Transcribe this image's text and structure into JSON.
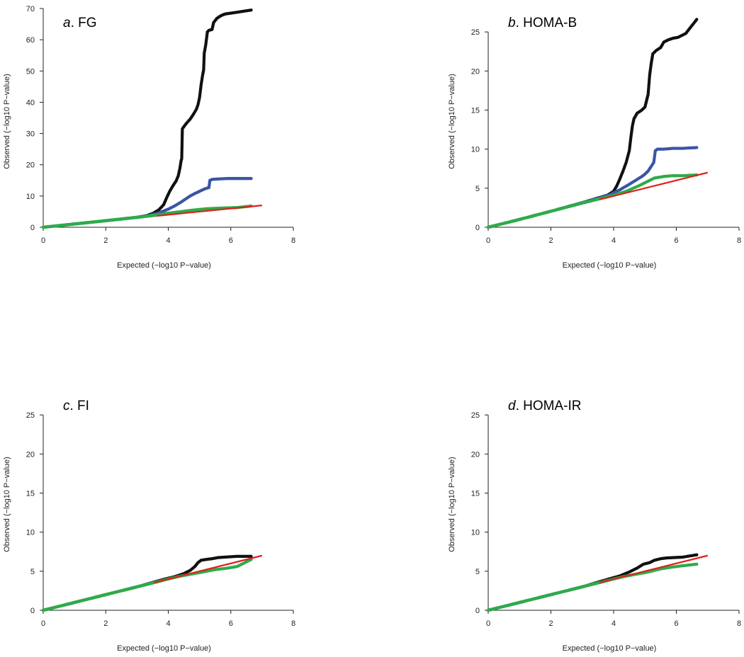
{
  "colors": {
    "null_line": "#e0201b",
    "series_black": "#111111",
    "series_blue": "#3a55a4",
    "series_green": "#2eab4a"
  },
  "chart_data": [
    {
      "type": "scatter",
      "panel_letter": "a",
      "panel_label": "FG",
      "xlabel": "Expected (−log10 P−value)",
      "ylabel": "Observed (−log10 P−value)",
      "xlim": [
        0,
        8
      ],
      "ylim": [
        0,
        70
      ],
      "xticks": [
        0,
        2,
        4,
        6,
        8
      ],
      "yticks": [
        0,
        10,
        20,
        30,
        40,
        50,
        60,
        70
      ],
      "null_line": {
        "x": [
          0,
          7
        ],
        "y": [
          0,
          7
        ]
      },
      "series": [
        {
          "color": "#111111",
          "points": [
            [
              0,
              0
            ],
            [
              1,
              1.05
            ],
            [
              2,
              2.1
            ],
            [
              3,
              3.2
            ],
            [
              3.3,
              3.7
            ],
            [
              3.5,
              4.4
            ],
            [
              3.7,
              5.6
            ],
            [
              3.85,
              7.2
            ],
            [
              3.95,
              9.5
            ],
            [
              4.05,
              11.6
            ],
            [
              4.15,
              13.3
            ],
            [
              4.25,
              14.8
            ],
            [
              4.32,
              16.5
            ],
            [
              4.37,
              18.8
            ],
            [
              4.41,
              21.3
            ],
            [
              4.43,
              22
            ],
            [
              4.45,
              31.5
            ],
            [
              4.52,
              32.5
            ],
            [
              4.6,
              33.5
            ],
            [
              4.7,
              34.6
            ],
            [
              4.8,
              36.1
            ],
            [
              4.9,
              37.8
            ],
            [
              4.95,
              39.2
            ],
            [
              5.0,
              41.5
            ],
            [
              5.05,
              45.6
            ],
            [
              5.1,
              48.8
            ],
            [
              5.13,
              50.3
            ],
            [
              5.15,
              55.7
            ],
            [
              5.2,
              58.5
            ],
            [
              5.25,
              62.5
            ],
            [
              5.3,
              63
            ],
            [
              5.4,
              63.3
            ],
            [
              5.45,
              65.5
            ],
            [
              5.55,
              66.8
            ],
            [
              5.65,
              67.5
            ],
            [
              5.75,
              68
            ],
            [
              5.85,
              68.3
            ],
            [
              6.0,
              68.5
            ],
            [
              6.2,
              68.8
            ],
            [
              6.65,
              69.5
            ]
          ]
        },
        {
          "color": "#3a55a4",
          "points": [
            [
              0,
              0
            ],
            [
              1,
              1.05
            ],
            [
              2,
              2.1
            ],
            [
              3,
              3.2
            ],
            [
              3.4,
              3.8
            ],
            [
              3.6,
              4.3
            ],
            [
              3.8,
              5.0
            ],
            [
              4.0,
              5.8
            ],
            [
              4.2,
              6.8
            ],
            [
              4.4,
              8.0
            ],
            [
              4.55,
              9.0
            ],
            [
              4.7,
              10.0
            ],
            [
              4.85,
              10.8
            ],
            [
              5.0,
              11.5
            ],
            [
              5.1,
              12.0
            ],
            [
              5.2,
              12.4
            ],
            [
              5.3,
              12.7
            ],
            [
              5.33,
              15.0
            ],
            [
              5.4,
              15.3
            ],
            [
              5.5,
              15.4
            ],
            [
              5.7,
              15.5
            ],
            [
              5.9,
              15.6
            ],
            [
              6.2,
              15.6
            ],
            [
              6.65,
              15.6
            ]
          ]
        },
        {
          "color": "#2eab4a",
          "points": [
            [
              0,
              0
            ],
            [
              1,
              1.05
            ],
            [
              2,
              2.1
            ],
            [
              3,
              3.15
            ],
            [
              3.6,
              3.9
            ],
            [
              4.0,
              4.5
            ],
            [
              4.4,
              5.0
            ],
            [
              4.8,
              5.5
            ],
            [
              5.2,
              5.9
            ],
            [
              5.6,
              6.1
            ],
            [
              5.9,
              6.2
            ],
            [
              6.2,
              6.3
            ],
            [
              6.65,
              6.8
            ]
          ]
        }
      ]
    },
    {
      "type": "scatter",
      "panel_letter": "b",
      "panel_label": "HOMA-B",
      "xlabel": "Expected (−log10 P−value)",
      "ylabel": "Observed (−log10 P−value)",
      "xlim": [
        0,
        8
      ],
      "ylim": [
        0,
        28
      ],
      "xticks": [
        0,
        2,
        4,
        6,
        8
      ],
      "yticks": [
        0,
        5,
        10,
        15,
        20,
        25
      ],
      "null_line": {
        "x": [
          0,
          7
        ],
        "y": [
          0,
          7
        ]
      },
      "series": [
        {
          "color": "#111111",
          "points": [
            [
              0,
              0
            ],
            [
              1,
              1
            ],
            [
              2,
              2.05
            ],
            [
              3,
              3.15
            ],
            [
              3.5,
              3.75
            ],
            [
              3.8,
              4.1
            ],
            [
              4.0,
              4.6
            ],
            [
              4.1,
              5.3
            ],
            [
              4.2,
              6.2
            ],
            [
              4.3,
              7.2
            ],
            [
              4.4,
              8.3
            ],
            [
              4.5,
              9.8
            ],
            [
              4.55,
              11.5
            ],
            [
              4.6,
              13.0
            ],
            [
              4.65,
              13.9
            ],
            [
              4.75,
              14.6
            ],
            [
              4.9,
              15.0
            ],
            [
              5.0,
              15.4
            ],
            [
              5.05,
              16.2
            ],
            [
              5.1,
              17.0
            ],
            [
              5.15,
              19.5
            ],
            [
              5.2,
              21.0
            ],
            [
              5.25,
              22.2
            ],
            [
              5.35,
              22.6
            ],
            [
              5.5,
              23.0
            ],
            [
              5.6,
              23.7
            ],
            [
              5.75,
              24.0
            ],
            [
              5.9,
              24.2
            ],
            [
              6.05,
              24.3
            ],
            [
              6.3,
              24.8
            ],
            [
              6.65,
              26.6
            ]
          ]
        },
        {
          "color": "#3a55a4",
          "points": [
            [
              0,
              0
            ],
            [
              1,
              1
            ],
            [
              2,
              2.05
            ],
            [
              3,
              3.15
            ],
            [
              3.5,
              3.7
            ],
            [
              3.9,
              4.2
            ],
            [
              4.2,
              4.8
            ],
            [
              4.5,
              5.5
            ],
            [
              4.7,
              6.0
            ],
            [
              4.9,
              6.5
            ],
            [
              5.0,
              6.8
            ],
            [
              5.1,
              7.2
            ],
            [
              5.2,
              7.8
            ],
            [
              5.28,
              8.3
            ],
            [
              5.33,
              9.8
            ],
            [
              5.4,
              10.0
            ],
            [
              5.6,
              10.0
            ],
            [
              5.9,
              10.1
            ],
            [
              6.2,
              10.1
            ],
            [
              6.65,
              10.2
            ]
          ]
        },
        {
          "color": "#2eab4a",
          "points": [
            [
              0,
              0
            ],
            [
              1,
              1
            ],
            [
              2,
              2.05
            ],
            [
              3,
              3.1
            ],
            [
              3.5,
              3.6
            ],
            [
              4.0,
              4.1
            ],
            [
              4.4,
              4.6
            ],
            [
              4.8,
              5.3
            ],
            [
              5.1,
              5.9
            ],
            [
              5.3,
              6.3
            ],
            [
              5.6,
              6.5
            ],
            [
              5.9,
              6.6
            ],
            [
              6.2,
              6.6
            ],
            [
              6.65,
              6.7
            ]
          ]
        }
      ]
    },
    {
      "type": "scatter",
      "panel_letter": "c",
      "panel_label": "FI",
      "xlabel": "Expected (−log10 P−value)",
      "ylabel": "Observed (−log10 P−value)",
      "xlim": [
        0,
        8
      ],
      "ylim": [
        0,
        28
      ],
      "xticks": [
        0,
        2,
        4,
        6,
        8
      ],
      "yticks": [
        0,
        5,
        10,
        15,
        20,
        25
      ],
      "null_line": {
        "x": [
          0,
          7
        ],
        "y": [
          0,
          7
        ]
      },
      "series": [
        {
          "color": "#111111",
          "points": [
            [
              0,
              0
            ],
            [
              1,
              1
            ],
            [
              2,
              2
            ],
            [
              3,
              3
            ],
            [
              3.8,
              3.9
            ],
            [
              4.2,
              4.3
            ],
            [
              4.5,
              4.7
            ],
            [
              4.7,
              5.1
            ],
            [
              4.85,
              5.6
            ],
            [
              4.95,
              6.1
            ],
            [
              5.05,
              6.4
            ],
            [
              5.2,
              6.5
            ],
            [
              5.4,
              6.6
            ],
            [
              5.6,
              6.75
            ],
            [
              5.8,
              6.8
            ],
            [
              6.2,
              6.9
            ],
            [
              6.65,
              6.9
            ]
          ]
        },
        {
          "color": "#3a55a4",
          "points": [
            [
              0,
              0
            ],
            [
              2,
              2
            ],
            [
              3.8,
              3.8
            ]
          ]
        },
        {
          "color": "#2eab4a",
          "points": [
            [
              0,
              0
            ],
            [
              1,
              1
            ],
            [
              2,
              2
            ],
            [
              3,
              3
            ],
            [
              3.5,
              3.5
            ],
            [
              3.9,
              3.9
            ],
            [
              4.3,
              4.3
            ],
            [
              4.7,
              4.6
            ],
            [
              5.1,
              4.9
            ],
            [
              5.5,
              5.2
            ],
            [
              5.9,
              5.4
            ],
            [
              6.2,
              5.6
            ],
            [
              6.65,
              6.5
            ]
          ]
        }
      ]
    },
    {
      "type": "scatter",
      "panel_letter": "d",
      "panel_label": "HOMA-IR",
      "xlabel": "Expected (−log10 P−value)",
      "ylabel": "Observed (−log10 P−value)",
      "xlim": [
        0,
        8
      ],
      "ylim": [
        0,
        28
      ],
      "xticks": [
        0,
        2,
        4,
        6,
        8
      ],
      "yticks": [
        0,
        5,
        10,
        15,
        20,
        25
      ],
      "null_line": {
        "x": [
          0,
          7
        ],
        "y": [
          0,
          7
        ]
      },
      "series": [
        {
          "color": "#111111",
          "points": [
            [
              0,
              0
            ],
            [
              1,
              1
            ],
            [
              2,
              2
            ],
            [
              3,
              3
            ],
            [
              3.8,
              3.95
            ],
            [
              4.2,
              4.4
            ],
            [
              4.5,
              4.9
            ],
            [
              4.75,
              5.4
            ],
            [
              4.95,
              5.9
            ],
            [
              5.15,
              6.1
            ],
            [
              5.3,
              6.4
            ],
            [
              5.5,
              6.6
            ],
            [
              5.7,
              6.7
            ],
            [
              5.95,
              6.75
            ],
            [
              6.2,
              6.8
            ],
            [
              6.65,
              7.1
            ]
          ]
        },
        {
          "color": "#3a55a4",
          "points": [
            [
              0,
              0
            ],
            [
              2,
              2
            ],
            [
              3.8,
              3.8
            ]
          ]
        },
        {
          "color": "#2eab4a",
          "points": [
            [
              0,
              0
            ],
            [
              1,
              1
            ],
            [
              2,
              2
            ],
            [
              3,
              3
            ],
            [
              3.5,
              3.5
            ],
            [
              3.9,
              3.9
            ],
            [
              4.3,
              4.3
            ],
            [
              4.7,
              4.6
            ],
            [
              5.1,
              4.9
            ],
            [
              5.5,
              5.3
            ],
            [
              5.9,
              5.55
            ],
            [
              6.2,
              5.7
            ],
            [
              6.65,
              5.9
            ]
          ]
        }
      ]
    }
  ]
}
